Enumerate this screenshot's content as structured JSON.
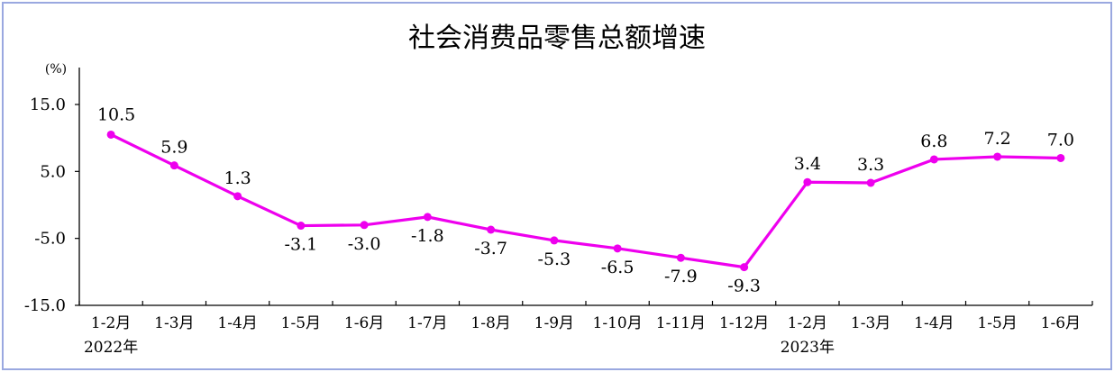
{
  "chart_data": {
    "type": "line",
    "title": "社会消费品零售总额增速",
    "unit": "(%)",
    "ylim": [
      -15.0,
      15.0
    ],
    "yticks": [
      "15.0",
      "5.0",
      "-5.0",
      "-15.0"
    ],
    "ytick_values": [
      15,
      5,
      -5,
      -15
    ],
    "categories": [
      "1-2月",
      "1-3月",
      "1-4月",
      "1-5月",
      "1-6月",
      "1-7月",
      "1-8月",
      "1-9月",
      "1-10月",
      "1-11月",
      "1-12月",
      "1-2月",
      "1-3月",
      "1-4月",
      "1-5月",
      "1-6月"
    ],
    "year_labels": [
      {
        "text": "2022年",
        "category_index": 0
      },
      {
        "text": "2023年",
        "category_index": 11
      }
    ],
    "series": [
      {
        "values": [
          10.5,
          5.9,
          1.3,
          -3.1,
          -3.0,
          -1.8,
          -3.7,
          -5.3,
          -6.5,
          -7.9,
          -9.3,
          3.4,
          3.3,
          6.8,
          7.2,
          7.0
        ],
        "labels": [
          "10.5",
          "5.9",
          "1.3",
          "-3.1",
          "-3.0",
          "-1.8",
          "-3.7",
          "-5.3",
          "-6.5",
          "-7.9",
          "-9.3",
          "3.4",
          "3.3",
          "6.8",
          "7.2",
          "7.0"
        ],
        "color": "#ee00ee"
      }
    ],
    "grid": false,
    "legend": "none"
  }
}
